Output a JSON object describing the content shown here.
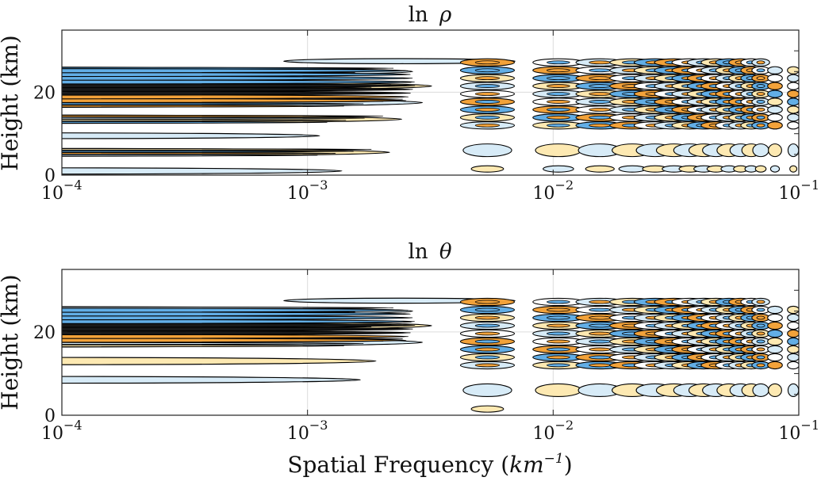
{
  "chart_data": [
    {
      "type": "contour",
      "title": "ln ρ",
      "title_parts": {
        "fn": "ln",
        "var": "ρ"
      },
      "xlabel": "",
      "ylabel": "Height (km)",
      "xscale": "log",
      "xlim": [
        0.0001,
        0.1
      ],
      "ylim": [
        0,
        35
      ],
      "grid": true,
      "xticks": [
        {
          "value": 0.0001,
          "base": "10",
          "exp": "−4"
        },
        {
          "value": 0.001,
          "base": "10",
          "exp": "−3"
        },
        {
          "value": 0.01,
          "base": "10",
          "exp": "−2"
        },
        {
          "value": 0.1,
          "base": "10",
          "exp": "−1"
        }
      ],
      "yticks": [
        {
          "value": 0,
          "label": "0"
        },
        {
          "value": 20,
          "label": "20"
        }
      ],
      "levels": {
        "positive": "#f2a23a",
        "positive_light": "#fde9b2",
        "negative": "#62aee6",
        "negative_light": "#d7ebf7",
        "line": "#000000"
      },
      "layers": [
        {
          "x": 0.0001,
          "y": 1.0,
          "value": 0.3
        },
        {
          "x": 0.0001,
          "y": 5.5,
          "value": 0.6
        },
        {
          "x": 0.0001,
          "y": 9.5,
          "value": 0.2
        },
        {
          "x": 0.0001,
          "y": 13.5,
          "value": 0.7
        },
        {
          "x": 0.0001,
          "y": 17.5,
          "value": 0.9
        },
        {
          "x": 0.0001,
          "y": 21.5,
          "value": 1.0
        },
        {
          "x": 0.0001,
          "y": 25.0,
          "value": 0.8
        }
      ],
      "band_peaks_x": [
        0.0054,
        0.0105,
        0.0155,
        0.021,
        0.026,
        0.031,
        0.036,
        0.041,
        0.046,
        0.052,
        0.058,
        0.064,
        0.07,
        0.08,
        0.095
      ]
    },
    {
      "type": "contour",
      "title": "ln θ",
      "title_parts": {
        "fn": "ln",
        "var": "θ"
      },
      "xlabel": "Spatial Frequency (km⁻¹)",
      "xlabel_parts": {
        "text": "Spatial Frequency (",
        "unit": "km",
        "exp": "−1",
        "close": ")"
      },
      "ylabel": "Height (km)",
      "xscale": "log",
      "xlim": [
        0.0001,
        0.1
      ],
      "ylim": [
        0,
        35
      ],
      "grid": true,
      "xticks": [
        {
          "value": 0.0001,
          "base": "10",
          "exp": "−4"
        },
        {
          "value": 0.001,
          "base": "10",
          "exp": "−3"
        },
        {
          "value": 0.01,
          "base": "10",
          "exp": "−2"
        },
        {
          "value": 0.1,
          "base": "10",
          "exp": "−1"
        }
      ],
      "yticks": [
        {
          "value": 0,
          "label": "0"
        },
        {
          "value": 20,
          "label": "20"
        }
      ],
      "levels": {
        "positive": "#f2a23a",
        "positive_light": "#fde9b2",
        "negative": "#62aee6",
        "negative_light": "#d7ebf7",
        "line": "#000000"
      },
      "layers": [
        {
          "x": 0.0001,
          "y": 8.5,
          "value": 0.4
        },
        {
          "x": 0.0001,
          "y": 13.0,
          "value": 0.5
        },
        {
          "x": 0.0001,
          "y": 17.5,
          "value": 0.9
        },
        {
          "x": 0.0001,
          "y": 21.5,
          "value": 1.0
        },
        {
          "x": 0.0001,
          "y": 25.0,
          "value": 0.8
        }
      ],
      "band_peaks_x": [
        0.0054,
        0.0105,
        0.0155,
        0.021,
        0.026,
        0.031,
        0.036,
        0.041,
        0.046,
        0.052,
        0.058,
        0.064,
        0.07,
        0.08,
        0.095
      ]
    }
  ]
}
